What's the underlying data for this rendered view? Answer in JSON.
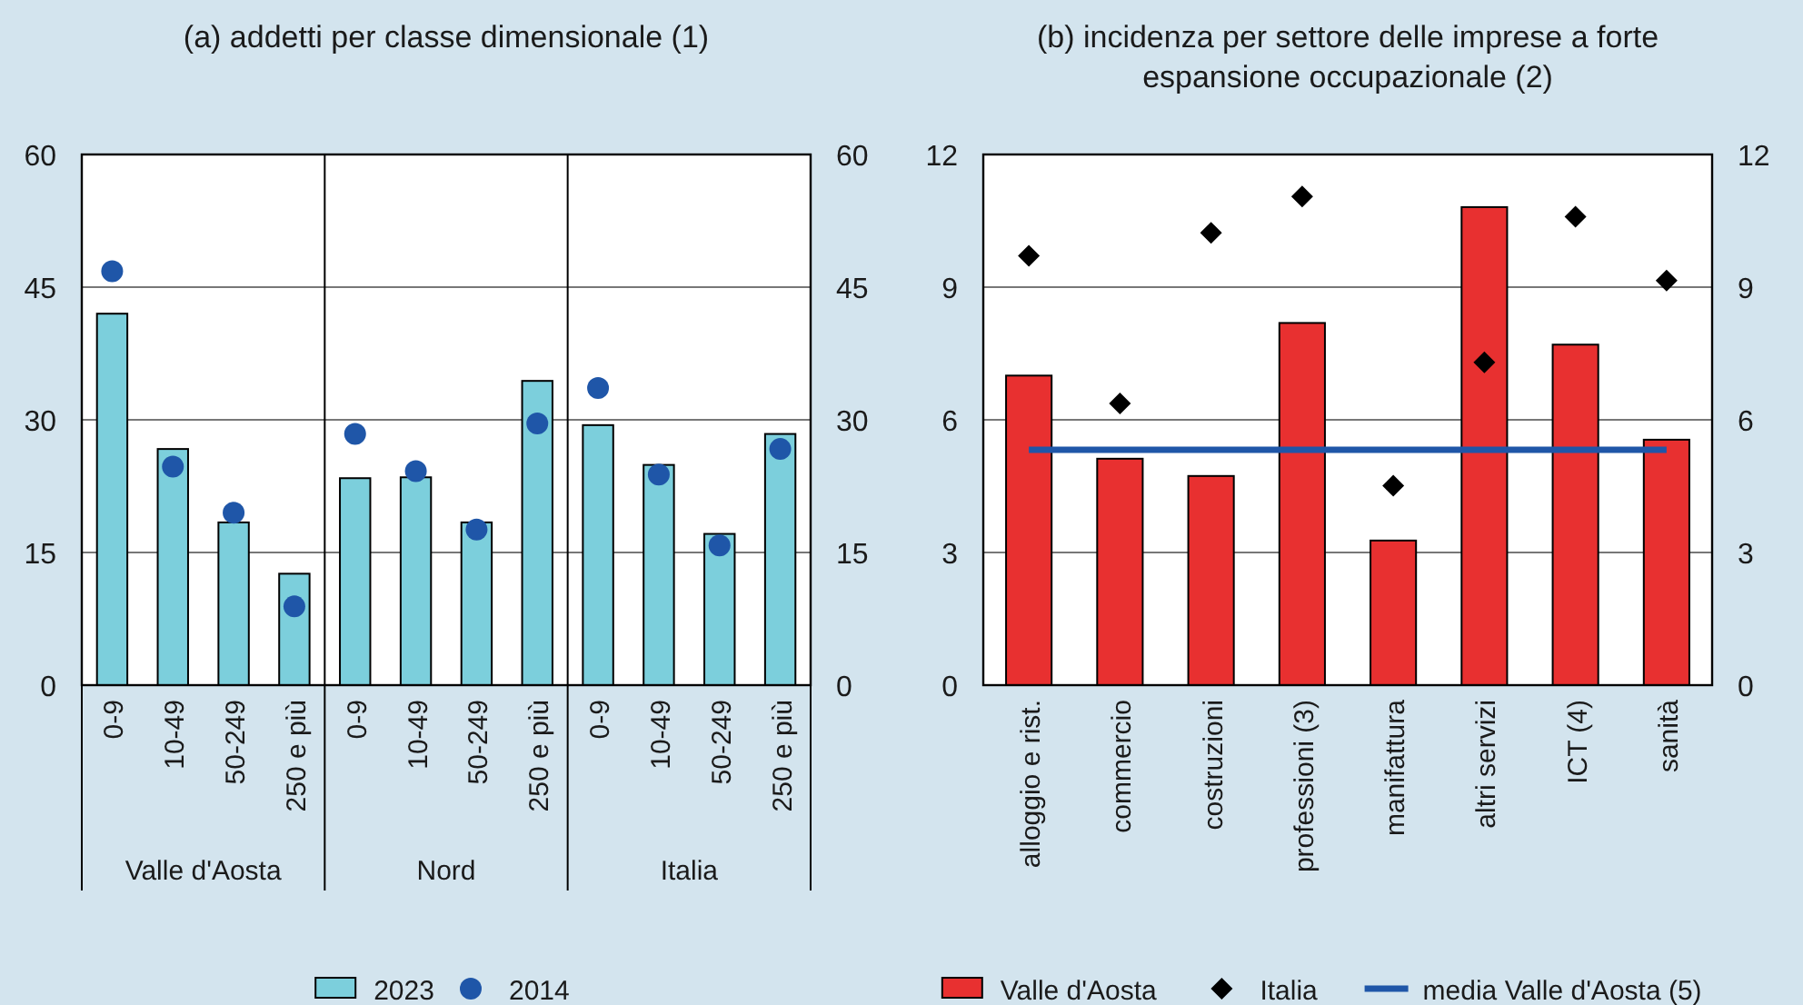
{
  "chart_data": [
    {
      "type": "bar",
      "title": "(a) addetti per classe dimensionale (1)",
      "categories": [
        "0-9",
        "10-49",
        "50-249",
        "250 e più",
        "0-9",
        "10-49",
        "50-249",
        "250 e più",
        "0-9",
        "10-49",
        "50-249",
        "250 e più"
      ],
      "series": [
        {
          "name": "2023",
          "color": "#7ccfdc",
          "values": [
            42.0,
            26.7,
            18.4,
            12.6,
            23.4,
            23.5,
            18.4,
            34.4,
            29.4,
            24.9,
            17.1,
            28.4
          ]
        },
        {
          "name": "2014",
          "type": "scatter",
          "marker": "circle",
          "color": "#1f56a8",
          "values": [
            46.8,
            24.7,
            19.5,
            8.9,
            28.4,
            24.2,
            17.6,
            29.6,
            33.6,
            23.8,
            15.8,
            26.7
          ]
        }
      ],
      "annotations": [
        "Valle d'Aosta",
        "Nord",
        "Italia"
      ],
      "ylim": [
        0,
        60
      ],
      "yticks": [
        0,
        15,
        30,
        45,
        60
      ],
      "y2lim": [
        0,
        60
      ],
      "y2ticks": [
        0,
        15,
        30,
        45,
        60
      ],
      "grid": "y",
      "legend": "bottom"
    },
    {
      "type": "bar",
      "title": "(b) incidenza per settore delle imprese a forte espansione occupazionale (2)",
      "categories": [
        "alloggio e rist.",
        "commercio",
        "costruzioni",
        "professioni (3)",
        "manifattura",
        "altri servizi",
        "ICT (4)",
        "sanità"
      ],
      "series": [
        {
          "name": "Valle d'Aosta",
          "color": "#e83030",
          "values": [
            7.0,
            5.12,
            4.73,
            8.19,
            3.27,
            10.81,
            7.7,
            5.55
          ]
        },
        {
          "name": "Italia",
          "type": "scatter",
          "marker": "diamond",
          "color": "#000000",
          "values": [
            9.71,
            6.37,
            10.23,
            11.05,
            4.51,
            7.3,
            10.59,
            9.15
          ]
        },
        {
          "name": "media Valle d'Aosta (5)",
          "type": "line",
          "color": "#1f56a8",
          "values": [
            5.32,
            5.32,
            5.32,
            5.32,
            5.32,
            5.32,
            5.32,
            5.32
          ]
        }
      ],
      "ylim": [
        0,
        12
      ],
      "yticks": [
        0,
        3,
        6,
        9,
        12
      ],
      "y2lim": [
        0,
        12
      ],
      "y2ticks": [
        0,
        3,
        6,
        9,
        12
      ],
      "grid": "y",
      "legend": "bottom"
    }
  ]
}
